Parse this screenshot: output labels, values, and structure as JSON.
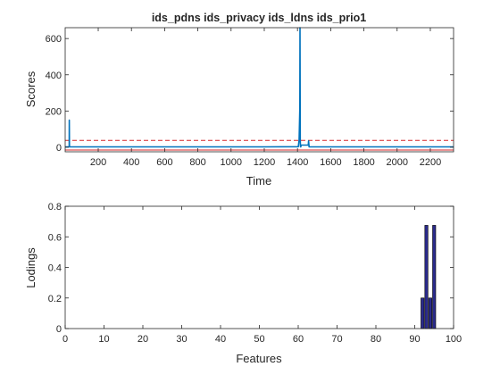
{
  "chart_data": [
    {
      "type": "line",
      "title": "ids_pdns ids_privacy ids_ldns ids_prio1",
      "xlabel": "Time",
      "ylabel": "Scores",
      "xlim": [
        1,
        2340
      ],
      "ylim": [
        -25,
        660
      ],
      "xticks": [
        200,
        400,
        600,
        800,
        1000,
        1200,
        1400,
        1600,
        1800,
        2000,
        2200
      ],
      "yticks": [
        0,
        200,
        400,
        600
      ],
      "grid": false,
      "legend": "none",
      "series": [
        {
          "color": "#0072bd",
          "style": "solid",
          "x": [
            1,
            25,
            26,
            27,
            30,
            100,
            400,
            800,
            1200,
            1405,
            1410,
            1414,
            1415,
            1417,
            1418,
            1419,
            1420,
            1421,
            1430,
            1465,
            1467,
            1470,
            1800,
            2340
          ],
          "y": [
            2,
            2,
            150,
            2,
            2,
            2,
            2,
            2,
            2,
            3,
            40,
            215,
            660,
            40,
            4,
            2,
            2,
            12,
            12,
            12,
            35,
            2,
            2,
            2
          ]
        }
      ],
      "reference_lines": [
        {
          "y": 38,
          "color": "#d62728",
          "style": "dashed"
        },
        {
          "y": -15,
          "color": "#d62728",
          "style": "solid"
        }
      ]
    },
    {
      "type": "bar",
      "title": "",
      "xlabel": "Features",
      "ylabel": "Lodings",
      "xlim": [
        0,
        100
      ],
      "ylim": [
        0,
        0.8
      ],
      "xticks": [
        0,
        10,
        20,
        30,
        40,
        50,
        60,
        70,
        80,
        90,
        100
      ],
      "yticks": [
        0,
        0.2,
        0.4,
        0.6,
        0.8
      ],
      "grid": false,
      "legend": "none",
      "bar_color": "#2a2a8c",
      "x": [
        92,
        93,
        94,
        95
      ],
      "values": [
        0.2,
        0.675,
        0.2,
        0.675
      ]
    }
  ]
}
